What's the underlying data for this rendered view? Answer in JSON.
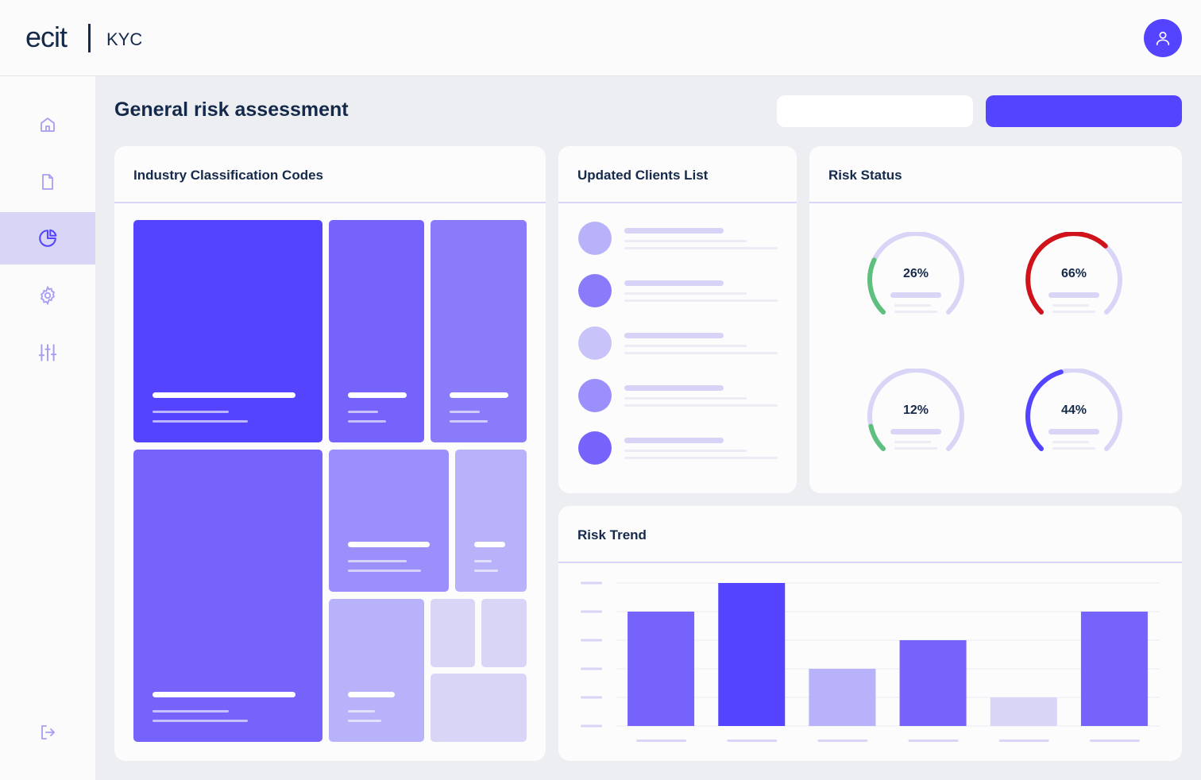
{
  "header": {
    "logo": "ecit",
    "product": "KYC"
  },
  "sidebar": {
    "items": [
      {
        "name": "home",
        "icon": "home-icon",
        "active": false
      },
      {
        "name": "documents",
        "icon": "document-icon",
        "active": false
      },
      {
        "name": "reports",
        "icon": "pie-chart-icon",
        "active": true
      },
      {
        "name": "settings",
        "icon": "gear-icon",
        "active": false
      },
      {
        "name": "filters",
        "icon": "sliders-icon",
        "active": false
      }
    ],
    "logout_icon": "logout-icon"
  },
  "page": {
    "title": "General risk assessment"
  },
  "cards": {
    "industry": {
      "title": "Industry Classification Codes"
    },
    "clients": {
      "title": "Updated Clients List"
    },
    "risk_status": {
      "title": "Risk Status"
    },
    "risk_trend": {
      "title": "Risk Trend"
    }
  },
  "risk_status": {
    "gauges": [
      {
        "label": "26%",
        "value": 26,
        "color": "#5fbf7f"
      },
      {
        "label": "66%",
        "value": 66,
        "color": "#d0121b"
      },
      {
        "label": "12%",
        "value": 12,
        "color": "#5fbf7f"
      },
      {
        "label": "44%",
        "value": 44,
        "color": "#5444ff"
      }
    ]
  },
  "chart_data": {
    "type": "bar",
    "title": "Risk Trend",
    "categories": [
      "",
      "",
      "",
      "",
      "",
      ""
    ],
    "values": [
      4,
      5,
      2,
      3,
      1,
      4
    ],
    "ylim": [
      0,
      5
    ],
    "colors": [
      "#7663fb",
      "#5444ff",
      "#b8b2fb",
      "#7663fb",
      "#d8d5f6",
      "#7663fb"
    ]
  },
  "colors": {
    "primary": "#5444ff",
    "navy": "#152a4a"
  }
}
